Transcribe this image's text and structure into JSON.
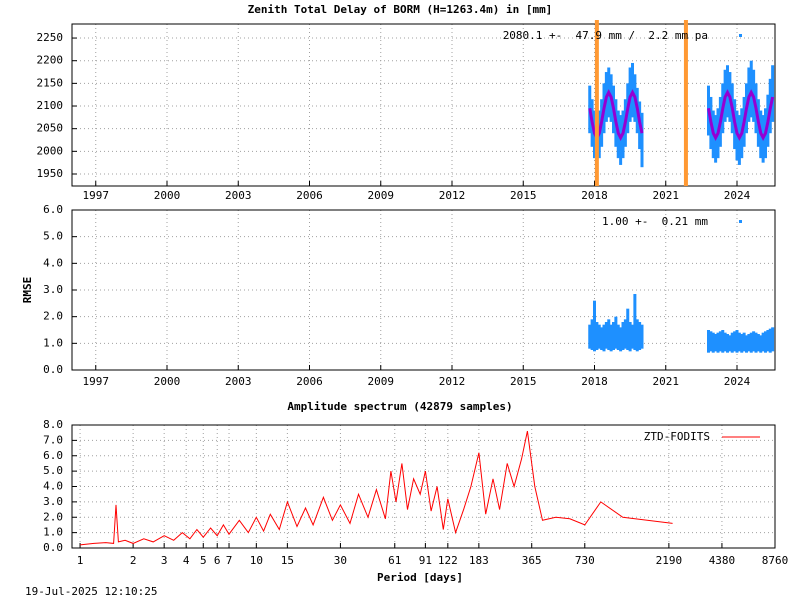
{
  "chart_data": [
    {
      "type": "band",
      "title": "Zenith Total Delay of BORM (H=1263.4m) in [mm]",
      "annotation": "2080.1 +-  47.9 mm /  2.2 mm pa",
      "x": [
        2017.8,
        2017.9,
        2018.0,
        2018.1,
        2018.2,
        2018.3,
        2018.4,
        2018.5,
        2018.6,
        2018.7,
        2018.8,
        2018.9,
        2019.0,
        2019.1,
        2019.2,
        2019.3,
        2019.4,
        2019.5,
        2019.6,
        2019.7,
        2019.8,
        2019.9,
        2020.0,
        2021.0,
        2022.8,
        2022.9,
        2023.0,
        2023.1,
        2023.2,
        2023.3,
        2023.4,
        2023.5,
        2023.6,
        2023.7,
        2023.8,
        2023.9,
        2024.0,
        2024.1,
        2024.2,
        2024.3,
        2024.4,
        2024.5,
        2024.6,
        2024.7,
        2024.8,
        2024.9,
        2025.0,
        2025.1,
        2025.2,
        2025.3,
        2025.4,
        2025.5
      ],
      "band": {
        "color": "#1e90ff",
        "low": [
          2040,
          2010,
          1985,
          1975,
          1985,
          2010,
          2040,
          2065,
          2075,
          2065,
          2040,
          2010,
          1985,
          1970,
          1985,
          2010,
          2040,
          2065,
          2075,
          2065,
          2040,
          2005,
          1965,
          null,
          2035,
          2005,
          1985,
          1975,
          1985,
          2010,
          2040,
          2065,
          2075,
          2065,
          2040,
          2005,
          1980,
          1970,
          1985,
          2010,
          2040,
          2065,
          2075,
          2065,
          2040,
          2010,
          1985,
          1975,
          1985,
          2010,
          2040,
          2065
        ],
        "high": [
          2145,
          2115,
          2090,
          2080,
          2090,
          2115,
          2150,
          2175,
          2185,
          2170,
          2145,
          2115,
          2090,
          2080,
          2090,
          2115,
          2150,
          2185,
          2195,
          2170,
          2140,
          2110,
          2085,
          null,
          2145,
          2120,
          2090,
          2080,
          2095,
          2120,
          2150,
          2180,
          2190,
          2175,
          2150,
          2115,
          2090,
          2080,
          2095,
          2120,
          2150,
          2185,
          2200,
          2180,
          2150,
          2115,
          2090,
          2080,
          2095,
          2125,
          2160,
          2190
        ]
      },
      "fit": {
        "color": "#9400d3",
        "values": [
          2095,
          2065,
          2040,
          2030,
          2040,
          2065,
          2095,
          2120,
          2130,
          2120,
          2095,
          2065,
          2040,
          2030,
          2040,
          2065,
          2095,
          2120,
          2130,
          2120,
          2095,
          2065,
          2040,
          null,
          2095,
          2065,
          2040,
          2030,
          2040,
          2065,
          2095,
          2120,
          2130,
          2120,
          2095,
          2065,
          2040,
          2030,
          2040,
          2065,
          2095,
          2120,
          2130,
          2120,
          2095,
          2065,
          2040,
          2030,
          2040,
          2065,
          2095,
          2120
        ]
      },
      "vlines": {
        "color": "#ff9933",
        "x": [
          2018.1,
          2021.85
        ]
      },
      "xlim": [
        1996.0,
        2025.6
      ],
      "ylim": [
        1923.5,
        2281
      ],
      "xticks": [
        1997,
        2000,
        2003,
        2006,
        2009,
        2012,
        2015,
        2018,
        2021,
        2024
      ],
      "yticks": [
        1950,
        2000,
        2050,
        2100,
        2150,
        2200,
        2250
      ],
      "grid": true
    },
    {
      "type": "band",
      "ylabel": "RMSE",
      "annotation": "1.00 +-  0.21 mm",
      "x": [
        2017.8,
        2017.9,
        2018.0,
        2018.1,
        2018.2,
        2018.3,
        2018.4,
        2018.5,
        2018.6,
        2018.7,
        2018.8,
        2018.9,
        2019.0,
        2019.1,
        2019.2,
        2019.3,
        2019.4,
        2019.5,
        2019.6,
        2019.7,
        2019.8,
        2019.9,
        2020.0,
        2021.0,
        2022.8,
        2022.9,
        2023.0,
        2023.1,
        2023.2,
        2023.3,
        2023.4,
        2023.5,
        2023.6,
        2023.7,
        2023.8,
        2023.9,
        2024.0,
        2024.1,
        2024.2,
        2024.3,
        2024.4,
        2024.5,
        2024.6,
        2024.7,
        2024.8,
        2024.9,
        2025.0,
        2025.1,
        2025.2,
        2025.3,
        2025.4,
        2025.5
      ],
      "band": {
        "color": "#1e90ff",
        "low": [
          0.8,
          0.75,
          0.7,
          0.75,
          0.8,
          0.75,
          0.7,
          0.8,
          0.75,
          0.7,
          0.75,
          0.8,
          0.75,
          0.7,
          0.75,
          0.8,
          0.75,
          0.7,
          0.8,
          0.75,
          0.7,
          0.75,
          0.8,
          null,
          0.65,
          0.7,
          0.65,
          0.7,
          0.65,
          0.7,
          0.65,
          0.7,
          0.65,
          0.7,
          0.65,
          0.7,
          0.65,
          0.7,
          0.65,
          0.7,
          0.65,
          0.7,
          0.65,
          0.7,
          0.65,
          0.7,
          0.65,
          0.7,
          0.65,
          0.7,
          0.65,
          0.7
        ],
        "high": [
          1.7,
          1.9,
          2.6,
          1.8,
          1.7,
          1.6,
          1.7,
          1.8,
          1.9,
          1.7,
          1.8,
          2.0,
          1.7,
          1.6,
          1.8,
          1.9,
          2.3,
          1.8,
          1.7,
          2.85,
          1.9,
          1.8,
          1.7,
          null,
          1.5,
          1.45,
          1.4,
          1.35,
          1.4,
          1.45,
          1.5,
          1.4,
          1.35,
          1.3,
          1.4,
          1.45,
          1.5,
          1.4,
          1.35,
          1.4,
          1.3,
          1.35,
          1.4,
          1.45,
          1.4,
          1.35,
          1.3,
          1.4,
          1.45,
          1.5,
          1.55,
          1.6
        ]
      },
      "xlim": [
        1996.0,
        2025.6
      ],
      "ylim": [
        0,
        6
      ],
      "xticks": [
        1997,
        2000,
        2003,
        2006,
        2009,
        2012,
        2015,
        2018,
        2021,
        2024
      ],
      "yticks": [
        {
          "value": 0,
          "label": "0.0"
        },
        {
          "value": 1,
          "label": "1.0"
        },
        {
          "value": 2,
          "label": "2.0"
        },
        {
          "value": 3,
          "label": "3.0"
        },
        {
          "value": 4,
          "label": "4.0"
        },
        {
          "value": 5,
          "label": "5.0"
        },
        {
          "value": 6,
          "label": "6.0"
        }
      ],
      "grid": true
    },
    {
      "type": "line",
      "title": "Amplitude spectrum (42879 samples)",
      "xlabel": "Period [days]",
      "x": [
        1,
        1.2,
        1.4,
        1.55,
        1.6,
        1.65,
        1.8,
        2,
        2.3,
        2.6,
        3,
        3.4,
        3.8,
        4.2,
        4.6,
        5,
        5.5,
        6,
        6.5,
        7,
        8,
        9,
        10,
        11,
        12,
        13.5,
        15,
        17,
        19,
        21,
        24,
        27,
        30,
        34,
        38,
        43,
        48,
        54,
        58,
        62,
        67,
        72,
        78,
        85,
        91,
        98,
        106,
        115,
        122,
        135,
        150,
        165,
        183,
        200,
        220,
        240,
        265,
        290,
        320,
        345,
        380,
        420,
        500,
        600,
        730,
        900,
        1200,
        2300
      ],
      "series": [
        {
          "name": "ZTD-FODITS",
          "color": "#ff0000",
          "values": [
            0.2,
            0.3,
            0.35,
            0.3,
            2.8,
            0.4,
            0.5,
            0.3,
            0.6,
            0.4,
            0.8,
            0.5,
            1.0,
            0.6,
            1.2,
            0.7,
            1.3,
            0.8,
            1.5,
            0.9,
            1.8,
            1.0,
            2.0,
            1.1,
            2.2,
            1.2,
            3.0,
            1.4,
            2.6,
            1.5,
            3.3,
            1.8,
            2.8,
            1.6,
            3.5,
            2.0,
            3.8,
            1.9,
            5.0,
            3.0,
            5.5,
            2.5,
            4.5,
            3.5,
            5.0,
            2.4,
            4.0,
            1.2,
            3.2,
            1.0,
            2.5,
            4.0,
            6.2,
            2.2,
            4.5,
            2.5,
            5.5,
            4.0,
            5.8,
            7.6,
            4.0,
            1.8,
            2.0,
            1.9,
            1.5,
            3.0,
            2.0,
            1.6
          ]
        }
      ],
      "log_x": true,
      "legend": "top-right",
      "xlim": [
        0.9,
        8760
      ],
      "ylim": [
        0,
        8
      ],
      "xticks": [
        1,
        2,
        3,
        4,
        5,
        6,
        7,
        10,
        15,
        30,
        61,
        91,
        122,
        183,
        365,
        730,
        2190,
        4380,
        8760
      ],
      "yticks": [
        {
          "value": 0,
          "label": "0.0"
        },
        {
          "value": 1,
          "label": "1.0"
        },
        {
          "value": 2,
          "label": "2.0"
        },
        {
          "value": 3,
          "label": "3.0"
        },
        {
          "value": 4,
          "label": "4.0"
        },
        {
          "value": 5,
          "label": "5.0"
        },
        {
          "value": 6,
          "label": "6.0"
        },
        {
          "value": 7,
          "label": "7.0"
        },
        {
          "value": 8,
          "label": "8.0"
        }
      ],
      "grid": true
    }
  ],
  "footer": "19-Jul-2025 12:10:25"
}
